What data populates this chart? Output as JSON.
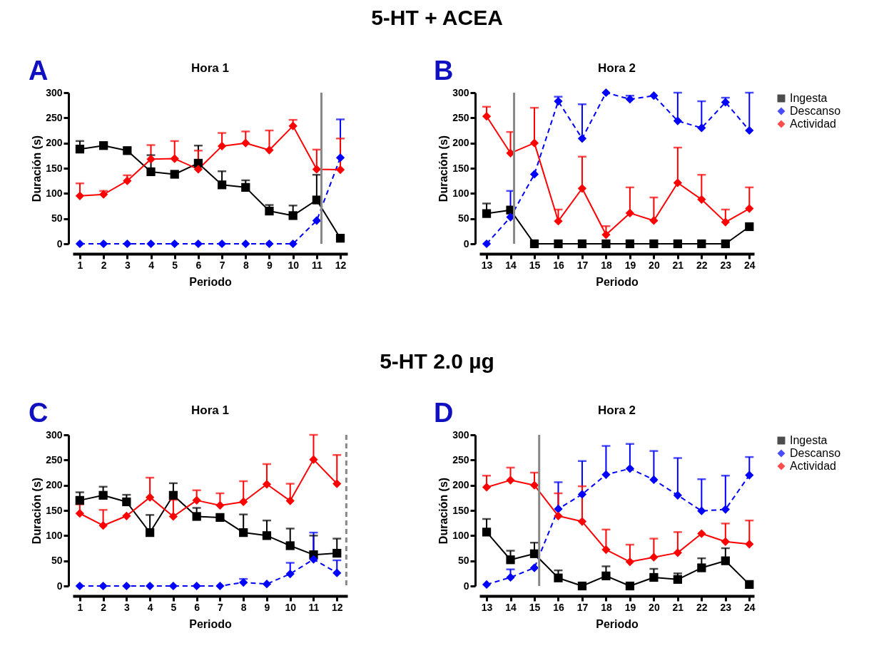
{
  "chart_data": [
    {
      "type": "line",
      "title": "Hora 1",
      "xlabel": "Periodo",
      "ylabel": "Duración (s)",
      "annotations": [
        "5-HT + ACEA",
        "A"
      ],
      "x": [
        1,
        2,
        3,
        4,
        5,
        6,
        7,
        8,
        9,
        10,
        11,
        12
      ],
      "xlim": [
        0.7,
        12.3
      ],
      "xticks": [
        1,
        2,
        3,
        4,
        5,
        6,
        7,
        8,
        9,
        10,
        11,
        12
      ],
      "ylim": [
        0,
        300
      ],
      "yticks": [
        0,
        50,
        100,
        150,
        200,
        250,
        300
      ],
      "grid": false,
      "legend": false,
      "ref_lines": [
        {
          "axis": "x",
          "value": 11.2,
          "color": "#888888",
          "line_style": "solid"
        }
      ],
      "series": [
        {
          "color": "#000000",
          "marker": "square",
          "line_style": "solid",
          "values": [
            188,
            195,
            185,
            143,
            138,
            160,
            117,
            112,
            65,
            56,
            87,
            11
          ],
          "errors": [
            [
              188,
              204
            ],
            null,
            null,
            [
              143,
              176
            ],
            null,
            [
              160,
              195
            ],
            [
              117,
              144
            ],
            [
              112,
              126
            ],
            [
              65,
              77
            ],
            [
              56,
              76
            ],
            [
              87,
              137
            ],
            [
              11,
              18
            ]
          ]
        },
        {
          "color": "#0000ff",
          "marker": "diamond",
          "line_style": "dashed",
          "values": [
            0,
            0,
            0,
            0,
            0,
            0,
            0,
            0,
            0,
            0,
            46,
            171
          ],
          "errors": [
            null,
            null,
            null,
            null,
            null,
            null,
            null,
            null,
            null,
            null,
            null,
            [
              171,
              247
            ]
          ]
        },
        {
          "color": "#ff0000",
          "marker": "diamond",
          "line_style": "solid",
          "values": [
            95,
            98,
            125,
            168,
            169,
            148,
            194,
            200,
            186,
            234,
            148,
            147
          ],
          "errors": [
            [
              95,
              120
            ],
            [
              98,
              105
            ],
            [
              125,
              136
            ],
            [
              168,
              196
            ],
            [
              169,
              204
            ],
            [
              148,
              185
            ],
            [
              194,
              220
            ],
            [
              200,
              223
            ],
            [
              186,
              225
            ],
            [
              234,
              246
            ],
            [
              148,
              187
            ],
            [
              147,
              209
            ]
          ]
        }
      ]
    },
    {
      "type": "line",
      "title": "Hora 2",
      "xlabel": "Periodo",
      "ylabel": "Duración (s)",
      "annotations": [
        "B"
      ],
      "x": [
        13,
        14,
        15,
        16,
        17,
        18,
        19,
        20,
        21,
        22,
        23,
        24
      ],
      "xlim": [
        12.7,
        24.2
      ],
      "xticks": [
        13,
        14,
        15,
        16,
        17,
        18,
        19,
        20,
        21,
        22,
        23,
        24
      ],
      "ylim": [
        0,
        300
      ],
      "yticks": [
        0,
        50,
        100,
        150,
        200,
        250,
        300
      ],
      "grid": false,
      "legend": "right",
      "ref_lines": [
        {
          "axis": "x",
          "value": 14.15,
          "color": "#888888",
          "line_style": "solid"
        }
      ],
      "series": [
        {
          "name": "Ingesta",
          "color": "#000000",
          "marker": "square",
          "line_style": "solid",
          "values": [
            60,
            67,
            0,
            0,
            0,
            0,
            0,
            0,
            0,
            0,
            0,
            34
          ],
          "errors": [
            [
              60,
              80
            ],
            null,
            null,
            null,
            null,
            null,
            null,
            null,
            null,
            null,
            null,
            null
          ]
        },
        {
          "name": "Descanso",
          "color": "#0000ff",
          "marker": "diamond",
          "line_style": "dashed",
          "values": [
            0,
            53,
            138,
            283,
            209,
            300,
            287,
            294,
            244,
            230,
            281,
            225
          ],
          "errors": [
            null,
            [
              53,
              105
            ],
            null,
            [
              283,
              292
            ],
            [
              209,
              277
            ],
            null,
            [
              287,
              294
            ],
            null,
            [
              244,
              300
            ],
            [
              230,
              283
            ],
            [
              281,
              290
            ],
            [
              225,
              300
            ]
          ]
        },
        {
          "name": "Actividad",
          "color": "#ff0000",
          "marker": "diamond",
          "line_style": "solid",
          "values": [
            253,
            180,
            200,
            45,
            110,
            18,
            61,
            46,
            121,
            88,
            43,
            70
          ],
          "errors": [
            [
              253,
              272
            ],
            [
              180,
              222
            ],
            [
              200,
              270
            ],
            [
              45,
              68
            ],
            [
              110,
              173
            ],
            [
              18,
              35
            ],
            [
              61,
              112
            ],
            [
              46,
              92
            ],
            [
              121,
              191
            ],
            [
              88,
              137
            ],
            [
              43,
              68
            ],
            [
              70,
              112
            ]
          ]
        }
      ]
    },
    {
      "type": "line",
      "title": "Hora 1",
      "xlabel": "Periodo",
      "ylabel": "Duración (s)",
      "annotations": [
        "5-HT  2.0 µg",
        "C"
      ],
      "x": [
        1,
        2,
        3,
        4,
        5,
        6,
        7,
        8,
        9,
        10,
        11,
        12
      ],
      "xlim": [
        0.7,
        12.45
      ],
      "xticks": [
        1,
        2,
        3,
        4,
        5,
        6,
        7,
        8,
        9,
        10,
        11,
        12
      ],
      "ylim": [
        0,
        300
      ],
      "yticks": [
        0,
        50,
        100,
        150,
        200,
        250,
        300
      ],
      "grid": false,
      "legend": false,
      "ref_lines": [
        {
          "axis": "x",
          "value": 12.4,
          "color": "#888888",
          "line_style": "dashed"
        }
      ],
      "series": [
        {
          "color": "#000000",
          "marker": "square",
          "line_style": "solid",
          "values": [
            170,
            180,
            167,
            106,
            180,
            138,
            136,
            106,
            100,
            80,
            62,
            65
          ],
          "errors": [
            [
              170,
              186
            ],
            [
              180,
              197
            ],
            [
              167,
              181
            ],
            [
              106,
              141
            ],
            [
              180,
              204
            ],
            [
              138,
              155
            ],
            null,
            [
              106,
              142
            ],
            [
              100,
              130
            ],
            [
              80,
              114
            ],
            [
              62,
              100
            ],
            [
              65,
              94
            ]
          ]
        },
        {
          "color": "#0000ff",
          "marker": "diamond",
          "line_style": "dashed",
          "values": [
            0,
            0,
            0,
            0,
            0,
            0,
            0,
            7,
            4,
            24,
            53,
            26
          ],
          "errors": [
            null,
            null,
            null,
            null,
            null,
            null,
            null,
            [
              7,
              14
            ],
            null,
            [
              24,
              46
            ],
            [
              53,
              106
            ],
            [
              26,
              51
            ]
          ]
        },
        {
          "color": "#ff0000",
          "marker": "diamond",
          "line_style": "solid",
          "values": [
            144,
            120,
            139,
            176,
            138,
            170,
            160,
            167,
            202,
            169,
            251,
            203
          ],
          "errors": [
            [
              144,
              162
            ],
            [
              120,
              151
            ],
            null,
            [
              176,
              215
            ],
            [
              138,
              171
            ],
            [
              170,
              190
            ],
            [
              160,
              184
            ],
            [
              167,
              208
            ],
            [
              202,
              242
            ],
            [
              169,
              203
            ],
            [
              251,
              300
            ],
            [
              203,
              260
            ]
          ]
        }
      ]
    },
    {
      "type": "line",
      "title": "Hora 2",
      "xlabel": "Periodo",
      "ylabel": "Duración (s)",
      "annotations": [
        "D"
      ],
      "x": [
        13,
        14,
        15,
        16,
        17,
        18,
        19,
        20,
        21,
        22,
        23,
        24
      ],
      "xlim": [
        12.7,
        24.2
      ],
      "xticks": [
        13,
        14,
        15,
        16,
        17,
        18,
        19,
        20,
        21,
        22,
        23,
        24
      ],
      "ylim": [
        0,
        300
      ],
      "yticks": [
        0,
        50,
        100,
        150,
        200,
        250,
        300
      ],
      "grid": false,
      "legend": "right",
      "ref_lines": [
        {
          "axis": "x",
          "value": 15.2,
          "color": "#888888",
          "line_style": "solid"
        }
      ],
      "series": [
        {
          "name": "Ingesta",
          "color": "#000000",
          "marker": "square",
          "line_style": "solid",
          "values": [
            107,
            52,
            64,
            16,
            0,
            20,
            0,
            17,
            13,
            36,
            50,
            3
          ],
          "errors": [
            [
              107,
              133
            ],
            [
              52,
              70
            ],
            [
              64,
              86
            ],
            [
              16,
              31
            ],
            null,
            [
              20,
              39
            ],
            null,
            [
              17,
              34
            ],
            [
              13,
              25
            ],
            [
              36,
              55
            ],
            [
              50,
              75
            ],
            null
          ]
        },
        {
          "name": "Descanso",
          "color": "#0000ff",
          "marker": "diamond",
          "line_style": "dashed",
          "values": [
            3,
            17,
            36,
            153,
            182,
            221,
            233,
            211,
            180,
            149,
            152,
            220
          ],
          "errors": [
            null,
            [
              17,
              33
            ],
            null,
            [
              153,
              206
            ],
            [
              182,
              248
            ],
            [
              221,
              278
            ],
            [
              233,
              282
            ],
            [
              211,
              268
            ],
            [
              180,
              254
            ],
            [
              149,
              212
            ],
            [
              152,
              219
            ],
            [
              220,
              256
            ]
          ]
        },
        {
          "name": "Actividad",
          "color": "#ff0000",
          "marker": "diamond",
          "line_style": "solid",
          "values": [
            196,
            210,
            200,
            139,
            128,
            72,
            48,
            57,
            66,
            104,
            88,
            83
          ],
          "errors": [
            [
              196,
              219
            ],
            [
              210,
              235
            ],
            [
              200,
              225
            ],
            [
              139,
              184
            ],
            [
              128,
              198
            ],
            [
              72,
              112
            ],
            [
              48,
              82
            ],
            [
              57,
              94
            ],
            [
              66,
              107
            ],
            null,
            [
              88,
              124
            ],
            [
              83,
              130
            ]
          ]
        }
      ]
    }
  ]
}
